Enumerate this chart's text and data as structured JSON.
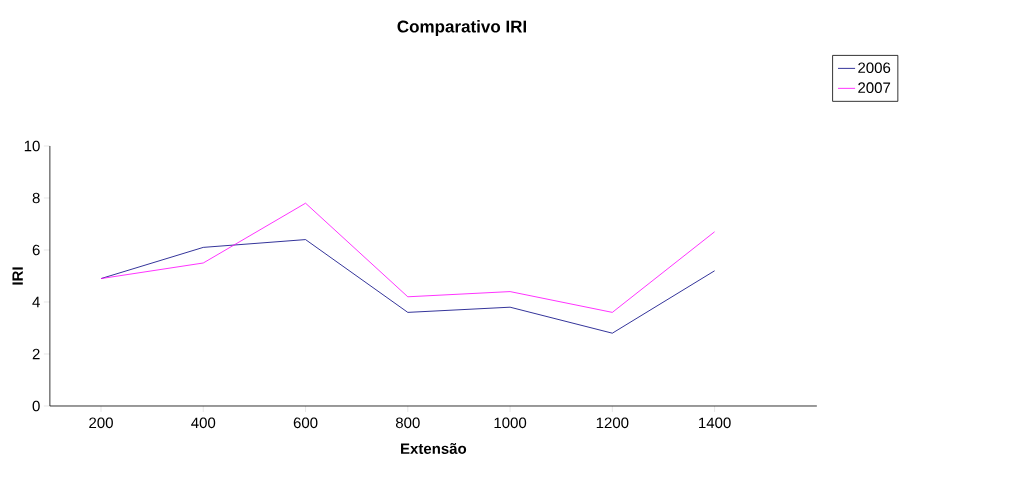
{
  "chart_data": {
    "type": "line",
    "title": "Comparativo IRI",
    "xlabel": "Extensão",
    "ylabel": "IRI",
    "categories": [
      "200",
      "400",
      "600",
      "800",
      "1000",
      "1200",
      "1400"
    ],
    "series": [
      {
        "name": "2006",
        "color": "#000080",
        "values": [
          4.9,
          6.1,
          6.4,
          3.6,
          3.8,
          2.8,
          5.2
        ]
      },
      {
        "name": "2007",
        "color": "#ff00ff",
        "values": [
          4.9,
          5.5,
          7.8,
          4.2,
          4.4,
          3.6,
          6.7
        ]
      }
    ],
    "ylim": [
      0,
      10
    ],
    "yticks": [
      0,
      2,
      4,
      6,
      8,
      10
    ],
    "grid": false,
    "legend": "top right",
    "marker": "none",
    "line_style": "solid"
  }
}
